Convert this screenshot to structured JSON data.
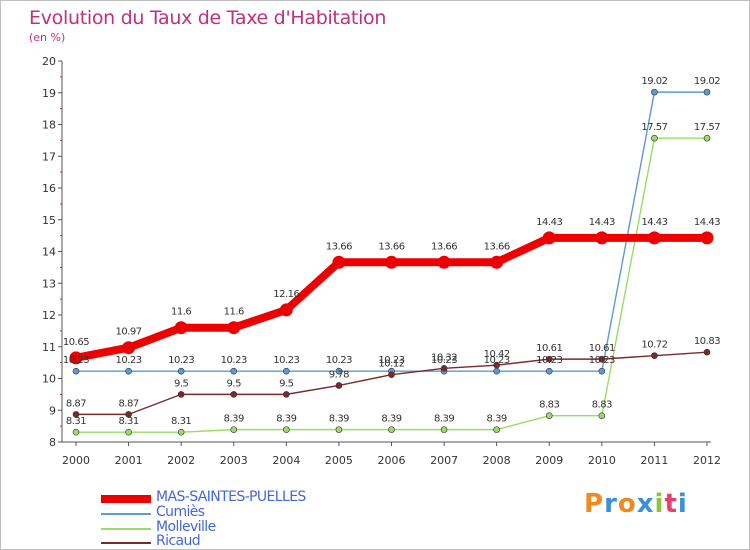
{
  "title": "Evolution du Taux de Taxe d'Habitation",
  "unit_label": "(en %)",
  "logo_text": "Proxiti",
  "logo_colors": [
    "#f08a1c",
    "#3a8fd9",
    "#f08a1c",
    "#3a8fd9",
    "#8cc63f",
    "#e83f6f",
    "#3a8fd9"
  ],
  "chart_data": {
    "type": "line",
    "title": "Evolution du Taux de Taxe d'Habitation",
    "ylabel": "(en %)",
    "xlabel": "",
    "ylim": [
      8,
      20
    ],
    "yticks": [
      8,
      9,
      10,
      11,
      12,
      13,
      14,
      15,
      16,
      17,
      18,
      19,
      20
    ],
    "grid": false,
    "legend_position": "bottom-left",
    "x": [
      "2000",
      "2001",
      "2002",
      "2003",
      "2004",
      "2005",
      "2006",
      "2007",
      "2008",
      "2009",
      "2010",
      "2011",
      "2012"
    ],
    "series": [
      {
        "name": "MAS-SAINTES-PUELLES",
        "color": "#ee0000",
        "style": "thick",
        "values": [
          10.65,
          10.97,
          11.6,
          11.6,
          12.16,
          13.66,
          13.66,
          13.66,
          13.66,
          14.43,
          14.43,
          14.43,
          14.43
        ],
        "labels": [
          "10.65",
          "10.97",
          "11.6",
          "11.6",
          "12.16",
          "13.66",
          "13.66",
          "13.66",
          "13.66",
          "14.43",
          "14.43",
          "14.43",
          "14.43"
        ]
      },
      {
        "name": "Cumiès",
        "color": "#5b9bd5",
        "style": "thin",
        "values": [
          10.23,
          10.23,
          10.23,
          10.23,
          10.23,
          10.23,
          10.23,
          10.23,
          10.23,
          10.23,
          10.23,
          19.02,
          19.02
        ],
        "labels": [
          "10.23",
          "10.23",
          "10.23",
          "10.23",
          "10.23",
          "10.23",
          "10.23",
          "10.23",
          "10.23",
          "10.23",
          "10.23",
          "19.02",
          "19.02"
        ]
      },
      {
        "name": "Molleville",
        "color": "#99dd66",
        "style": "thin",
        "values": [
          8.31,
          8.31,
          8.31,
          8.39,
          8.39,
          8.39,
          8.39,
          8.39,
          8.39,
          8.83,
          8.83,
          17.57,
          17.57
        ],
        "labels": [
          "8.31",
          "8.31",
          "8.31",
          "8.39",
          "8.39",
          "8.39",
          "8.39",
          "8.39",
          "8.39",
          "8.83",
          "8.83",
          "17.57",
          "17.57"
        ]
      },
      {
        "name": "Ricaud",
        "color": "#7b2a2a",
        "style": "thin",
        "values": [
          8.87,
          8.87,
          9.5,
          9.5,
          9.5,
          9.78,
          10.12,
          10.32,
          10.42,
          10.61,
          10.61,
          10.72,
          10.83
        ],
        "labels": [
          "8.87",
          "8.87",
          "9.5",
          "9.5",
          "9.5",
          "9.78",
          "10.12",
          "10.32",
          "10.42",
          "10.61",
          "10.61",
          "10.72",
          "10.83"
        ]
      }
    ]
  }
}
